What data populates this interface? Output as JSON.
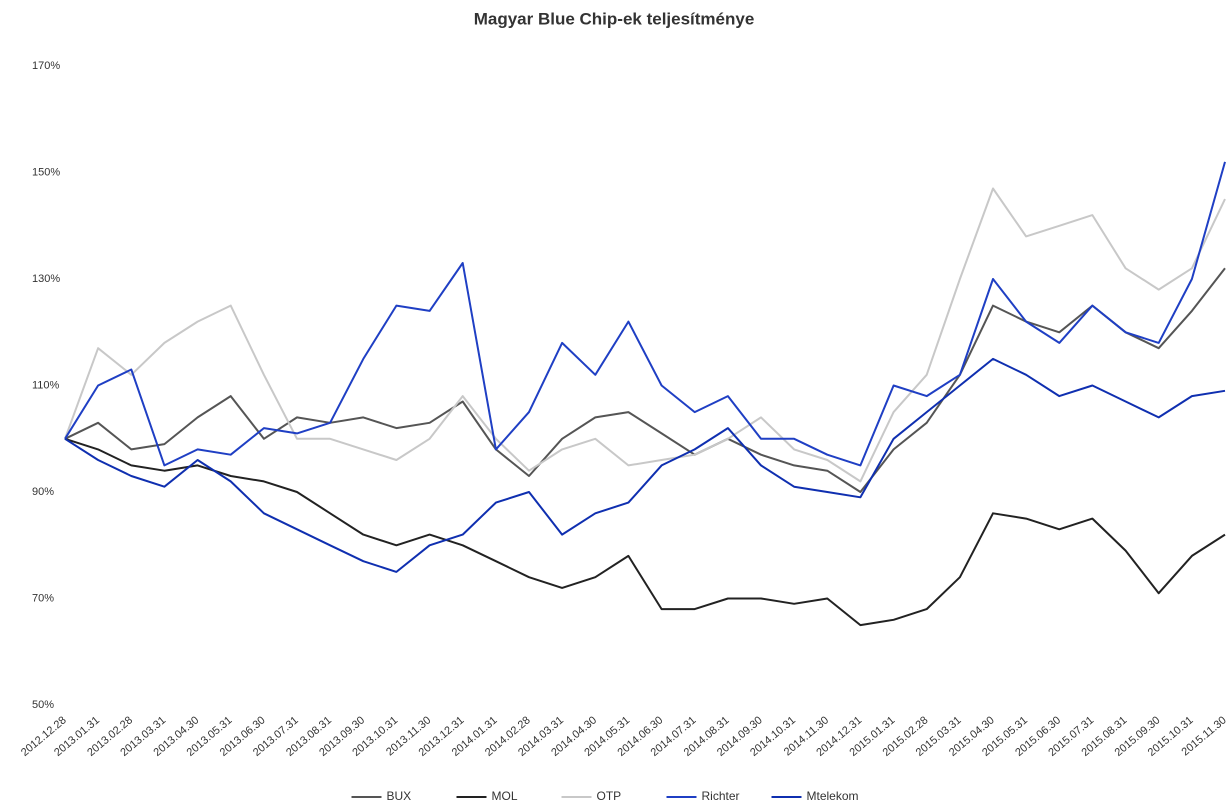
{
  "chart_data": {
    "type": "line",
    "title": "Magyar Blue Chip-ek teljesítménye",
    "categories": [
      "2012.12.28",
      "2013.01.31",
      "2013.02.28",
      "2013.03.31",
      "2013.04.30",
      "2013.05.31",
      "2013.06.30",
      "2013.07.31",
      "2013.08.31",
      "2013.09.30",
      "2013.10.31",
      "2013.11.30",
      "2013.12.31",
      "2014.01.31",
      "2014.02.28",
      "2014.03.31",
      "2014.04.30",
      "2014.05.31",
      "2014.06.30",
      "2014.07.31",
      "2014.08.31",
      "2014.09.30",
      "2014.10.31",
      "2014.11.30",
      "2014.12.31",
      "2015.01.31",
      "2015.02.28",
      "2015.03.31",
      "2015.04.30",
      "2015.05.31",
      "2015.06.30",
      "2015.07.31",
      "2015.08.31",
      "2015.09.30",
      "2015.10.31",
      "2015.11.30"
    ],
    "series": [
      {
        "name": "BUX",
        "color": "#555555",
        "values": [
          100,
          103,
          98,
          99,
          104,
          108,
          100,
          104,
          103,
          104,
          102,
          103,
          107,
          98,
          93,
          100,
          104,
          105,
          101,
          97,
          100,
          97,
          95,
          94,
          90,
          98,
          103,
          112,
          125,
          122,
          120,
          125,
          120,
          117,
          124,
          132
        ]
      },
      {
        "name": "MOL",
        "color": "#222222",
        "values": [
          100,
          98,
          95,
          94,
          95,
          93,
          92,
          90,
          86,
          82,
          80,
          82,
          80,
          77,
          74,
          72,
          74,
          78,
          68,
          68,
          70,
          70,
          69,
          70,
          65,
          66,
          68,
          74,
          86,
          85,
          83,
          85,
          79,
          71,
          78,
          82
        ]
      },
      {
        "name": "OTP",
        "color": "#c8c8c8",
        "values": [
          100,
          117,
          112,
          118,
          122,
          125,
          112,
          100,
          100,
          98,
          96,
          100,
          108,
          100,
          94,
          98,
          100,
          95,
          96,
          97,
          100,
          104,
          98,
          96,
          92,
          105,
          112,
          130,
          147,
          138,
          140,
          142,
          132,
          128,
          132,
          145
        ]
      },
      {
        "name": "Richter",
        "color": "#1f3fc4",
        "values": [
          100,
          110,
          113,
          95,
          98,
          97,
          102,
          101,
          103,
          115,
          125,
          124,
          133,
          98,
          105,
          118,
          112,
          122,
          110,
          105,
          108,
          100,
          100,
          97,
          95,
          110,
          108,
          112,
          130,
          122,
          118,
          125,
          120,
          118,
          130,
          152
        ]
      },
      {
        "name": "Mtelekom",
        "color": "#0f2fb0",
        "values": [
          100,
          96,
          93,
          91,
          96,
          92,
          86,
          83,
          80,
          77,
          75,
          80,
          82,
          88,
          90,
          82,
          86,
          88,
          95,
          98,
          102,
          95,
          91,
          90,
          89,
          100,
          105,
          110,
          115,
          112,
          108,
          110,
          107,
          104,
          108,
          109
        ]
      }
    ],
    "ylim": [
      50,
      170
    ],
    "yticks": [
      {
        "value": 50,
        "label": "50%"
      },
      {
        "value": 70,
        "label": "70%"
      },
      {
        "value": 90,
        "label": "90%"
      },
      {
        "value": 110,
        "label": "110%"
      },
      {
        "value": 130,
        "label": "130%"
      },
      {
        "value": 150,
        "label": "150%"
      },
      {
        "value": 170,
        "label": "170%"
      }
    ],
    "grid": false,
    "legend": "bottom"
  }
}
